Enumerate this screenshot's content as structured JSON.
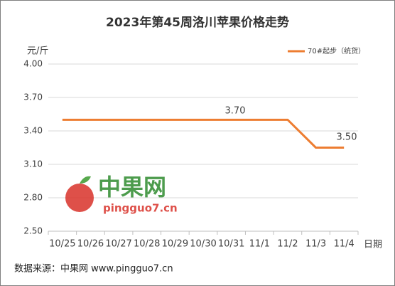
{
  "chart_data": {
    "type": "line",
    "title": "2023年第45周洛川苹果价格走势",
    "y_label": "元/斤",
    "x_label": "日期",
    "categories": [
      "10/25",
      "10/26",
      "10/27",
      "10/28",
      "10/29",
      "10/30",
      "10/31",
      "11/1",
      "11/2",
      "11/3",
      "11/4"
    ],
    "series": [
      {
        "name": "70#起步（统货）",
        "color": "#ed7d31",
        "values": [
          3.5,
          3.5,
          3.5,
          3.5,
          3.5,
          3.5,
          3.5,
          3.5,
          3.5,
          3.25,
          3.25
        ]
      }
    ],
    "annotations": [
      "3.70",
      "3.50"
    ],
    "ylim": [
      2.5,
      4.0
    ],
    "yticks": [
      {
        "value": 2.5,
        "label": "2.50"
      },
      {
        "value": 2.8,
        "label": "2.80"
      },
      {
        "value": 3.1,
        "label": "3.10"
      },
      {
        "value": 3.4,
        "label": "3.40"
      },
      {
        "value": 3.7,
        "label": "3.70"
      },
      {
        "value": 4.0,
        "label": "4.00"
      }
    ],
    "grid": true,
    "legend": "top-right",
    "watermark": {
      "title": "中果网",
      "url": "pingguo7.cn"
    },
    "source": "数据来源：中果网 www.pingguo7.cn"
  }
}
